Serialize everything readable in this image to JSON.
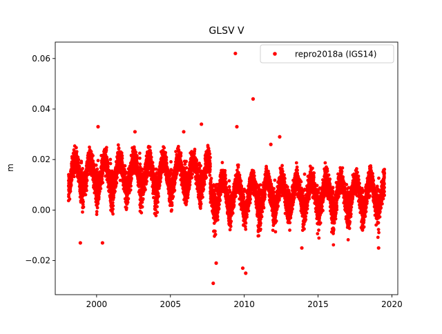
{
  "chart_data": {
    "type": "scatter",
    "title": "GLSV V",
    "xlabel": "",
    "ylabel": "m",
    "xlim": [
      1997.2,
      2020.4
    ],
    "ylim": [
      -0.0335,
      0.0665
    ],
    "x_ticks": [
      2000,
      2005,
      2010,
      2015,
      2020
    ],
    "x_tick_labels": [
      "2000",
      "2005",
      "2010",
      "2015",
      "2020"
    ],
    "y_ticks": [
      -0.02,
      0.0,
      0.02,
      0.04,
      0.06
    ],
    "y_tick_labels": [
      "−0.02",
      "0.00",
      "0.02",
      "0.04",
      "0.06"
    ],
    "grid": false,
    "legend": {
      "position": "top-right",
      "entries": [
        "repro2018a (IGS14)"
      ]
    },
    "series": [
      {
        "name": "repro2018a (IGS14)",
        "color": "#ff0000",
        "marker": "circle",
        "note_sampling": "daily solutions 1998.1–2019.5; baseline ~0.015 m until ~2007.7, ~0.006 m afterward, strong annual oscillation (~±0.006 m) with winter dips",
        "baseline_segments": [
          {
            "x_start": 1998.1,
            "x_end": 2007.7,
            "level": 0.014
          },
          {
            "x_start": 2007.7,
            "x_end": 2019.5,
            "level": 0.006
          }
        ],
        "annual_amplitude": 0.006,
        "scatter_std": 0.004,
        "outliers": [
          {
            "x": 2009.4,
            "y": 0.062
          },
          {
            "x": 2010.6,
            "y": 0.044
          },
          {
            "x": 2009.5,
            "y": 0.033
          },
          {
            "x": 2007.1,
            "y": 0.034
          },
          {
            "x": 2000.1,
            "y": 0.033
          },
          {
            "x": 2002.6,
            "y": 0.031
          },
          {
            "x": 2005.9,
            "y": 0.031
          },
          {
            "x": 2007.9,
            "y": -0.029
          },
          {
            "x": 2010.1,
            "y": -0.025
          },
          {
            "x": 2009.9,
            "y": -0.023
          },
          {
            "x": 2000.4,
            "y": -0.013
          },
          {
            "x": 1998.9,
            "y": -0.013
          },
          {
            "x": 2008.1,
            "y": -0.021
          },
          {
            "x": 2011.8,
            "y": 0.026
          },
          {
            "x": 2012.4,
            "y": 0.029
          },
          {
            "x": 2013.9,
            "y": -0.015
          },
          {
            "x": 2019.1,
            "y": -0.015
          }
        ]
      }
    ]
  }
}
